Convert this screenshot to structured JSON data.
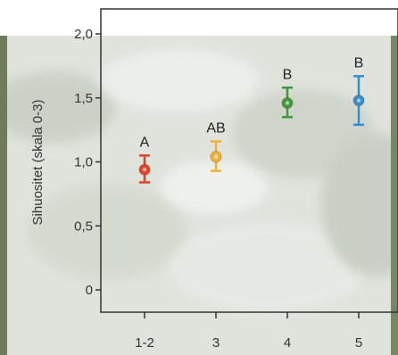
{
  "chart_data": {
    "type": "scatter",
    "title": "",
    "xlabel": "",
    "ylabel": "Sihuositet (skala 0-3)",
    "categories": [
      "1-2",
      "3",
      "4",
      "5"
    ],
    "yticks": [
      "0",
      "0,5",
      "1,0",
      "1,5",
      "2,0"
    ],
    "ylim": [
      0,
      2.0
    ],
    "grid": false,
    "series": [
      {
        "values": [
          0.94,
          1.04,
          1.46,
          1.48
        ],
        "err_low": [
          0.84,
          0.93,
          1.35,
          1.29
        ],
        "err_high": [
          1.05,
          1.16,
          1.58,
          1.67
        ],
        "colors": [
          "#e0422a",
          "#f2b132",
          "#3c9a3c",
          "#2f8fd0"
        ],
        "letters": [
          "A",
          "AB",
          "B",
          "B"
        ]
      }
    ]
  }
}
